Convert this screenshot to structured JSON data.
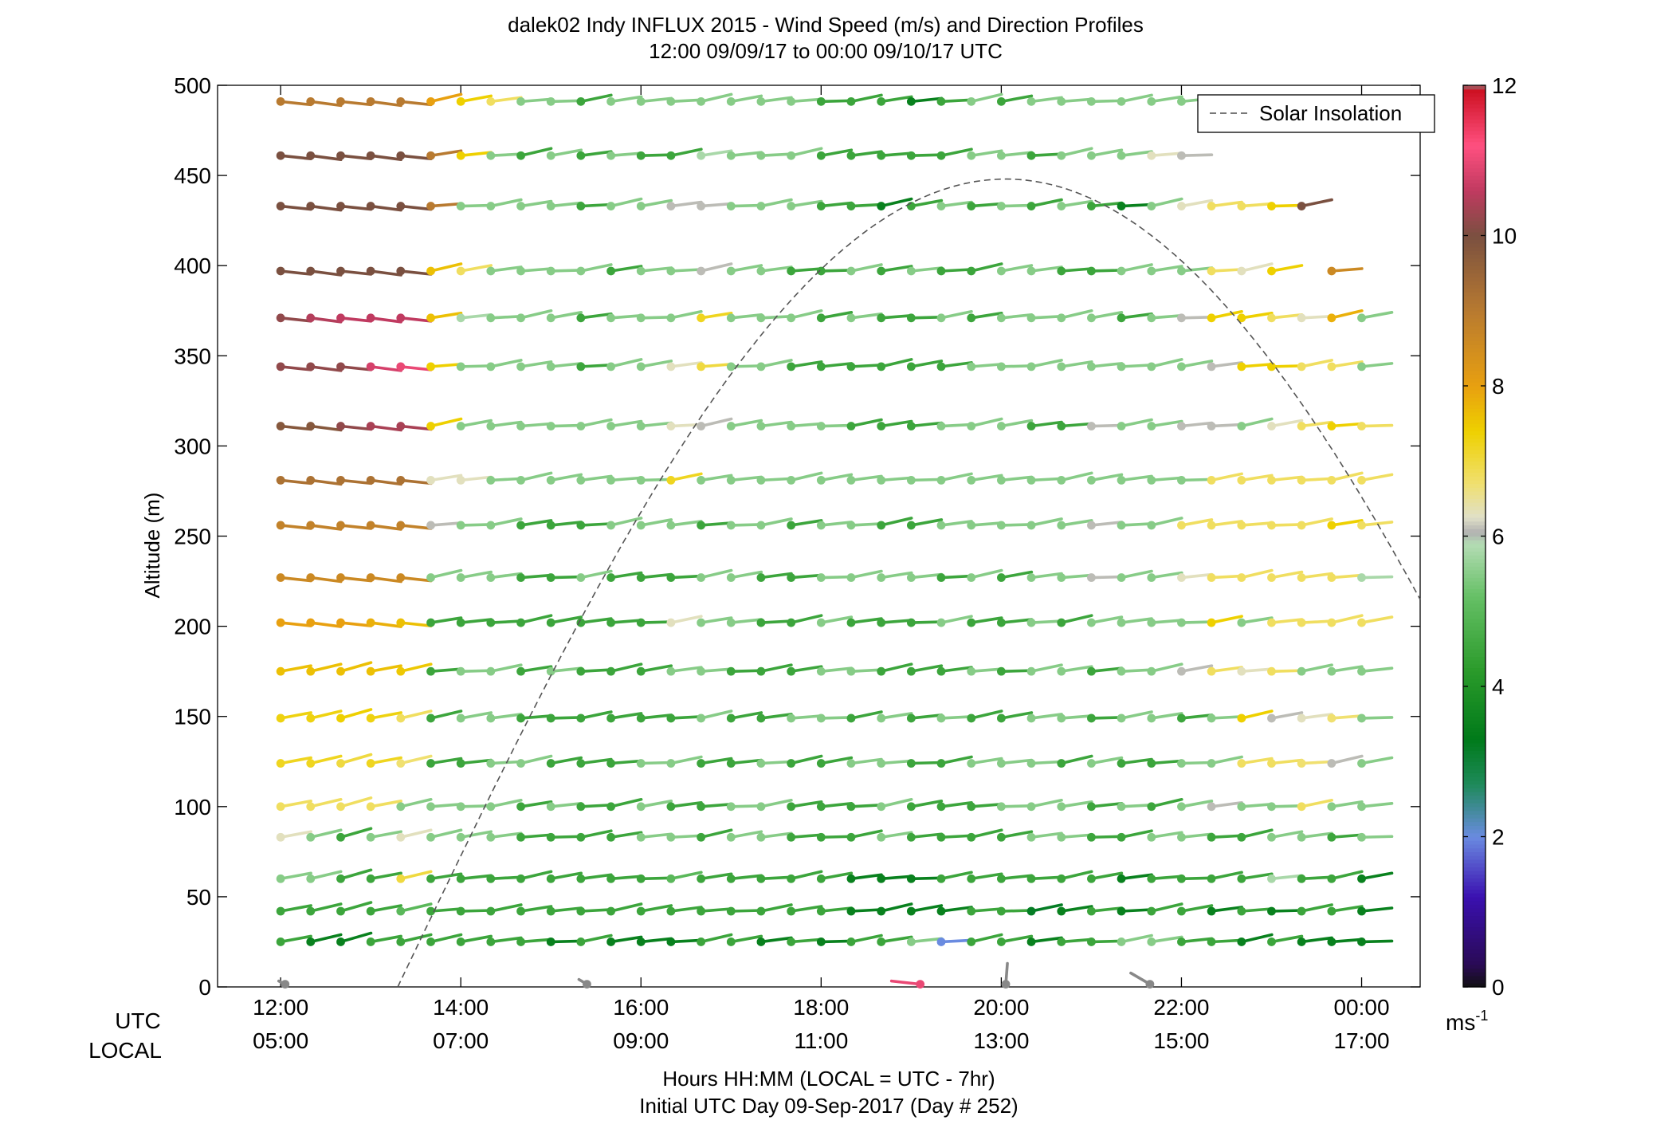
{
  "chart_data": {
    "type": "scatter",
    "subtype": "wind-barb-profile",
    "title": "dalek02 Indy INFLUX 2015 - Wind Speed (m/s) and Direction Profiles",
    "subtitle": "12:00 09/09/17 to 00:00 09/10/17  UTC",
    "xlabel": "Hours HH:MM  (LOCAL = UTC - 7hr)",
    "xlabel2": "Initial UTC Day 09-Sep-2017 (Day # 252)",
    "ylabel": "Altitude (m)",
    "xlim_hours_since_start": [
      -0.7,
      12.65
    ],
    "x_axis_row_labels": {
      "utc": "UTC",
      "local": "LOCAL"
    },
    "x_ticks_utc": [
      "12:00",
      "14:00",
      "16:00",
      "18:00",
      "20:00",
      "22:00",
      "00:00"
    ],
    "x_ticks_local": [
      "05:00",
      "07:00",
      "09:00",
      "11:00",
      "13:00",
      "15:00",
      "17:00"
    ],
    "ylim": [
      0,
      500
    ],
    "y_ticks": [
      0,
      50,
      100,
      150,
      200,
      250,
      300,
      350,
      400,
      450,
      500
    ],
    "colorbar": {
      "unit_label": "ms",
      "unit_exponent": "-1",
      "range": [
        0,
        12
      ],
      "ticks": [
        0,
        2,
        4,
        6,
        8,
        10,
        12
      ],
      "stops": [
        {
          "v": 0.0,
          "c": "#111111"
        },
        {
          "v": 0.3,
          "c": "#2a0a55"
        },
        {
          "v": 1.2,
          "c": "#3a10b0"
        },
        {
          "v": 2.0,
          "c": "#6a8be0"
        },
        {
          "v": 2.7,
          "c": "#1e8a5a"
        },
        {
          "v": 3.3,
          "c": "#007a1a"
        },
        {
          "v": 4.2,
          "c": "#2a9a2a"
        },
        {
          "v": 5.2,
          "c": "#66c066"
        },
        {
          "v": 5.9,
          "c": "#b4dcb4"
        },
        {
          "v": 6.05,
          "c": "#b0b0b0"
        },
        {
          "v": 6.25,
          "c": "#e0e0c8"
        },
        {
          "v": 6.7,
          "c": "#f0e070"
        },
        {
          "v": 7.4,
          "c": "#eed000"
        },
        {
          "v": 8.0,
          "c": "#e8a010"
        },
        {
          "v": 9.0,
          "c": "#b87a30"
        },
        {
          "v": 10.0,
          "c": "#7a5040"
        },
        {
          "v": 10.6,
          "c": "#c03a60"
        },
        {
          "v": 11.2,
          "c": "#ff5080"
        },
        {
          "v": 11.95,
          "c": "#cc1020"
        },
        {
          "v": 12.0,
          "c": "#888888"
        }
      ]
    },
    "altitudes_m": [
      25,
      42,
      60,
      83,
      100,
      124,
      149,
      175,
      202,
      227,
      256,
      281,
      311,
      344,
      371,
      397,
      433,
      461,
      491
    ],
    "times_hours_since_start": [
      0,
      0.333,
      0.667,
      1.0,
      1.333,
      1.667,
      2.0,
      2.333,
      2.667,
      3.0,
      3.333,
      3.667,
      4.0,
      4.333,
      4.667,
      5.0,
      5.333,
      5.667,
      6.0,
      6.333,
      6.667,
      7.0,
      7.333,
      7.667,
      8.0,
      8.333,
      8.667,
      9.0,
      9.333,
      9.667,
      10.0,
      10.333,
      10.667,
      11.0,
      11.333,
      11.667,
      12.0
    ],
    "wind_speed_ms_grid_note": "rows = altitudes_m (ascending), columns = times_hours_since_start; null = no data",
    "wind_speed_ms": [
      [
        4.5,
        3.5,
        3.5,
        4.5,
        4.5,
        4.5,
        4.5,
        4.5,
        4.5,
        3.5,
        4.5,
        3.5,
        3.5,
        3.5,
        4.5,
        4.5,
        3.5,
        4.5,
        3.5,
        4.5,
        4.5,
        5.5,
        2.0,
        4.5,
        4.5,
        3.5,
        4.5,
        4.5,
        5.5,
        5.5,
        4.5,
        4.5,
        3.5,
        4.5,
        3.5,
        3.5,
        3.5
      ],
      [
        4.5,
        4.5,
        4.5,
        4.5,
        5.0,
        4.5,
        4.5,
        4.5,
        4.5,
        4.5,
        4.5,
        4.5,
        4.5,
        4.5,
        4.5,
        4.5,
        4.5,
        4.5,
        4.5,
        3.5,
        3.5,
        3.5,
        3.5,
        4.5,
        4.5,
        3.2,
        3.5,
        4.5,
        3.5,
        4.5,
        4.5,
        3.5,
        4.5,
        3.5,
        4.5,
        4.5,
        3.5
      ],
      [
        5.5,
        5.5,
        4.5,
        4.5,
        7.0,
        4.5,
        4.5,
        4.5,
        4.5,
        4.5,
        4.5,
        4.5,
        4.5,
        5.0,
        4.5,
        4.5,
        4.5,
        4.5,
        4.5,
        3.5,
        3.5,
        3.5,
        4.5,
        4.5,
        4.5,
        4.5,
        4.5,
        4.5,
        3.5,
        4.5,
        4.5,
        4.5,
        4.5,
        5.8,
        4.5,
        4.5,
        3.5
      ],
      [
        6.3,
        5.5,
        4.5,
        5.5,
        6.3,
        5.5,
        5.5,
        5.5,
        4.5,
        4.5,
        4.5,
        4.5,
        5.5,
        5.5,
        4.5,
        5.5,
        5.5,
        4.5,
        4.5,
        4.5,
        5.5,
        4.5,
        4.5,
        4.5,
        4.5,
        5.5,
        5.5,
        4.5,
        4.5,
        5.5,
        5.5,
        4.5,
        4.5,
        5.5,
        5.5,
        4.5,
        5.5
      ],
      [
        6.8,
        6.8,
        6.8,
        6.8,
        5.5,
        5.5,
        5.5,
        5.5,
        4.5,
        5.5,
        4.5,
        4.5,
        5.5,
        4.5,
        4.5,
        5.5,
        5.5,
        4.5,
        4.5,
        4.5,
        5.5,
        4.5,
        4.5,
        4.5,
        5.5,
        5.5,
        5.5,
        4.5,
        5.5,
        4.5,
        5.5,
        6.1,
        5.5,
        5.5,
        6.8,
        5.5,
        5.5
      ],
      [
        7.2,
        7.2,
        7.0,
        7.2,
        6.7,
        4.5,
        4.5,
        5.5,
        5.5,
        4.5,
        4.5,
        4.5,
        5.5,
        5.5,
        4.5,
        4.5,
        5.5,
        4.5,
        4.5,
        5.5,
        5.5,
        4.5,
        4.5,
        5.5,
        5.5,
        5.5,
        4.5,
        5.5,
        4.5,
        4.5,
        5.5,
        5.5,
        6.8,
        6.8,
        6.7,
        6.1,
        5.5
      ],
      [
        7.3,
        7.3,
        7.4,
        7.3,
        6.8,
        4.5,
        5.5,
        5.5,
        4.5,
        4.5,
        4.5,
        4.5,
        4.5,
        4.5,
        5.5,
        4.5,
        4.5,
        5.5,
        5.5,
        4.5,
        5.5,
        4.5,
        5.5,
        4.5,
        4.5,
        5.5,
        5.5,
        4.5,
        5.5,
        5.5,
        4.5,
        5.5,
        7.4,
        6.1,
        6.3,
        6.7,
        5.5
      ],
      [
        7.6,
        7.6,
        7.6,
        7.6,
        7.5,
        4.5,
        5.5,
        5.5,
        4.5,
        5.5,
        4.5,
        4.5,
        4.5,
        5.5,
        5.5,
        4.5,
        4.5,
        4.5,
        5.5,
        5.5,
        4.5,
        4.5,
        4.5,
        5.5,
        4.5,
        5.5,
        5.5,
        4.5,
        5.5,
        5.5,
        6.1,
        6.8,
        6.3,
        6.8,
        5.5,
        5.5,
        5.5
      ],
      [
        8.0,
        8.0,
        8.0,
        7.8,
        7.6,
        4.5,
        4.5,
        4.5,
        4.5,
        4.5,
        4.5,
        4.5,
        4.5,
        6.3,
        5.5,
        5.5,
        4.5,
        4.5,
        5.5,
        4.5,
        4.5,
        4.5,
        5.5,
        4.5,
        4.5,
        5.5,
        4.5,
        5.5,
        5.5,
        5.5,
        5.5,
        7.4,
        5.5,
        6.8,
        6.8,
        6.8,
        6.8
      ],
      [
        8.6,
        8.6,
        8.6,
        8.6,
        8.6,
        5.5,
        5.5,
        5.5,
        4.5,
        4.5,
        5.5,
        4.5,
        4.5,
        4.5,
        5.5,
        5.5,
        4.5,
        4.5,
        5.5,
        5.5,
        5.5,
        5.5,
        4.5,
        5.5,
        4.5,
        5.5,
        5.5,
        6.1,
        5.5,
        5.5,
        6.3,
        6.8,
        6.8,
        6.8,
        6.8,
        6.8,
        5.8
      ],
      [
        8.8,
        8.8,
        8.8,
        8.8,
        8.8,
        6.1,
        5.5,
        5.5,
        4.5,
        4.5,
        4.5,
        5.5,
        5.5,
        5.5,
        4.5,
        5.5,
        5.5,
        4.5,
        5.5,
        5.5,
        4.5,
        4.5,
        5.5,
        5.5,
        5.5,
        5.5,
        5.5,
        6.1,
        5.5,
        5.5,
        6.8,
        6.8,
        6.8,
        6.8,
        6.8,
        7.4,
        6.8
      ],
      [
        9.2,
        9.2,
        9.2,
        9.2,
        9.2,
        6.3,
        6.3,
        5.5,
        5.5,
        5.5,
        5.5,
        5.5,
        5.5,
        7.2,
        5.5,
        5.5,
        5.5,
        5.5,
        5.5,
        5.5,
        5.5,
        5.5,
        5.5,
        5.5,
        5.5,
        5.5,
        5.5,
        5.5,
        5.5,
        5.5,
        5.5,
        6.8,
        6.8,
        6.8,
        6.8,
        6.8,
        6.8
      ],
      [
        9.8,
        9.8,
        10.2,
        10.4,
        10.4,
        7.4,
        5.5,
        5.5,
        5.5,
        5.5,
        5.5,
        5.5,
        5.5,
        6.3,
        6.1,
        5.5,
        5.5,
        5.5,
        5.5,
        4.5,
        4.5,
        4.5,
        5.5,
        5.5,
        5.5,
        4.5,
        4.5,
        6.1,
        5.5,
        5.5,
        6.1,
        6.1,
        5.5,
        6.3,
        6.8,
        7.4,
        6.8
      ],
      [
        10.2,
        10.2,
        10.2,
        10.8,
        11.0,
        7.4,
        5.5,
        5.5,
        5.5,
        5.5,
        4.5,
        5.5,
        5.5,
        6.3,
        7.0,
        5.5,
        5.5,
        4.5,
        4.5,
        4.5,
        4.5,
        4.5,
        4.5,
        5.5,
        5.5,
        5.5,
        5.5,
        5.5,
        5.5,
        5.5,
        5.5,
        6.1,
        7.4,
        7.4,
        6.8,
        6.8,
        5.5
      ],
      [
        10.2,
        10.5,
        10.6,
        10.6,
        10.6,
        7.6,
        5.8,
        5.5,
        5.5,
        5.5,
        4.5,
        5.5,
        5.5,
        5.5,
        7.2,
        5.5,
        5.5,
        5.5,
        4.5,
        5.5,
        4.5,
        4.5,
        5.5,
        4.5,
        5.5,
        5.5,
        5.5,
        5.5,
        4.5,
        5.5,
        6.1,
        7.4,
        7.4,
        6.8,
        6.3,
        7.8,
        5.5
      ],
      [
        10.0,
        10.0,
        10.0,
        10.0,
        10.0,
        7.6,
        6.8,
        5.5,
        5.5,
        5.5,
        5.5,
        4.5,
        5.5,
        5.5,
        6.1,
        5.5,
        5.5,
        4.5,
        4.5,
        5.5,
        4.5,
        5.5,
        4.5,
        4.5,
        5.5,
        5.5,
        4.5,
        4.5,
        5.5,
        5.5,
        5.5,
        6.8,
        6.3,
        7.4,
        null,
        8.6,
        null
      ],
      [
        10.0,
        10.0,
        10.0,
        10.0,
        10.0,
        9.0,
        5.5,
        5.5,
        5.5,
        5.5,
        4.5,
        5.5,
        5.5,
        6.1,
        6.1,
        5.5,
        5.5,
        5.5,
        4.5,
        4.5,
        3.5,
        4.5,
        5.5,
        4.5,
        5.5,
        4.5,
        5.5,
        4.5,
        3.5,
        5.5,
        6.3,
        6.8,
        6.8,
        7.4,
        10.0,
        null,
        null
      ],
      [
        10.0,
        10.0,
        10.0,
        10.0,
        10.0,
        9.0,
        7.4,
        5.5,
        4.5,
        5.5,
        4.5,
        5.5,
        4.5,
        4.5,
        5.8,
        5.5,
        5.5,
        5.5,
        4.5,
        4.5,
        4.5,
        4.5,
        4.5,
        5.5,
        5.5,
        4.5,
        5.5,
        5.5,
        5.5,
        6.3,
        6.1,
        null,
        null,
        null,
        null,
        null,
        null
      ],
      [
        9.0,
        9.0,
        9.0,
        9.0,
        9.0,
        8.0,
        7.4,
        6.8,
        5.5,
        5.5,
        4.5,
        5.5,
        5.5,
        5.5,
        5.5,
        5.5,
        5.5,
        5.5,
        4.5,
        4.5,
        4.5,
        3.5,
        4.5,
        5.5,
        4.5,
        5.5,
        5.5,
        5.5,
        5.5,
        5.5,
        5.5,
        null,
        null,
        null,
        null,
        null,
        null
      ]
    ],
    "direction_deg_approx": "winds mostly southwesterly (barbs point up-right); morning shows westerly to west-northwesterly flow aloft",
    "surface_obs": [
      {
        "t": 0.05,
        "speed": 12.0
      },
      {
        "t": 7.1,
        "speed": 11.0
      },
      {
        "t": 3.4,
        "speed": 12.0
      },
      {
        "t": 8.05,
        "speed": 12.0
      },
      {
        "t": 9.65,
        "speed": 12.0
      }
    ],
    "solar_insolation_curve": {
      "label": "Solar Insolation",
      "style": "dashed",
      "peak_time_hours_since_start": 8.05,
      "peak_altitude_equiv": 448,
      "start_time_hours_since_start": 1.3,
      "end_time_hours_since_start": 12.65
    },
    "legend_position": "top-right"
  }
}
